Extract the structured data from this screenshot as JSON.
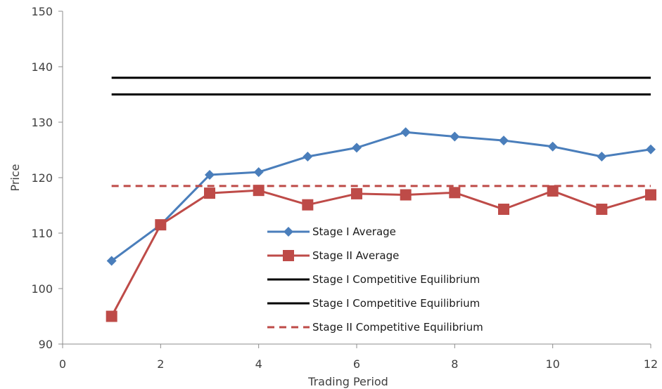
{
  "chart_data": {
    "type": "line",
    "title": "",
    "xlabel": "Trading Period",
    "ylabel": "Price",
    "xlim": [
      0,
      12
    ],
    "ylim": [
      90,
      150
    ],
    "xticks": [
      0,
      2,
      4,
      6,
      8,
      10,
      12
    ],
    "yticks": [
      90,
      100,
      110,
      120,
      130,
      140,
      150
    ],
    "grid": false,
    "legend_position": "center-bottom",
    "series": [
      {
        "name": "Stage I Average",
        "color": "#4a7ebb",
        "marker": "diamond",
        "style": "solid",
        "x": [
          1,
          2,
          3,
          4,
          5,
          6,
          7,
          8,
          9,
          10,
          11,
          12
        ],
        "y": [
          105,
          111.5,
          120.5,
          121,
          123.8,
          125.4,
          128.2,
          127.4,
          126.7,
          125.6,
          123.8,
          125.1
        ]
      },
      {
        "name": "Stage II Average",
        "color": "#be4b48",
        "marker": "square",
        "style": "solid",
        "x": [
          1,
          2,
          3,
          4,
          5,
          6,
          7,
          8,
          9,
          10,
          11,
          12
        ],
        "y": [
          95,
          111.5,
          117.2,
          117.7,
          115.1,
          117.1,
          116.9,
          117.3,
          114.3,
          117.6,
          114.3,
          116.9
        ]
      },
      {
        "name": "Stage I Competitive Equilibrium",
        "color": "#000000",
        "marker": "none",
        "style": "solid",
        "x": [
          1,
          12
        ],
        "y": [
          138,
          138
        ]
      },
      {
        "name": "Stage I Competitive Equilibrium",
        "color": "#000000",
        "marker": "none",
        "style": "solid",
        "x": [
          1,
          12
        ],
        "y": [
          135,
          135
        ]
      },
      {
        "name": "Stage II Competitive Equilibrium",
        "color": "#be4b48",
        "marker": "none",
        "style": "dashed",
        "x": [
          1,
          12
        ],
        "y": [
          118.5,
          118.5
        ]
      }
    ]
  }
}
